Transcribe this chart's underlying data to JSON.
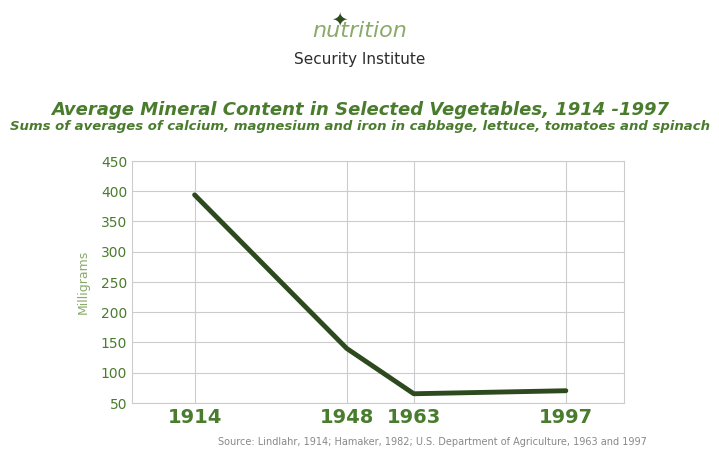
{
  "title": "Average Mineral Content in Selected Vegetables, 1914 -1997",
  "subtitle": "Sums of averages of calcium, magnesium and iron in cabbage, lettuce, tomatoes and spinach",
  "source": "Source: Lindlahr, 1914; Hamaker, 1982; U.S. Department of Agriculture, 1963 and 1997",
  "ylabel": "Milligrams",
  "x_values": [
    1914,
    1948,
    1963,
    1997
  ],
  "y_values": [
    394,
    140,
    65,
    70
  ],
  "ylim": [
    50,
    450
  ],
  "yticks": [
    50,
    100,
    150,
    200,
    250,
    300,
    350,
    400,
    450
  ],
  "line_color": "#2d4a1e",
  "line_width": 3.5,
  "title_color": "#4a7c2e",
  "subtitle_color": "#4a7c2e",
  "ylabel_color": "#8aaa6a",
  "tick_color": "#4a7c2e",
  "grid_color": "#cccccc",
  "bg_color": "#ffffff",
  "box_color": "#cccccc",
  "source_color": "#888888",
  "title_fontsize": 13,
  "subtitle_fontsize": 9.5,
  "ylabel_fontsize": 9,
  "xtick_fontsize": 14,
  "ytick_fontsize": 10,
  "source_fontsize": 7
}
